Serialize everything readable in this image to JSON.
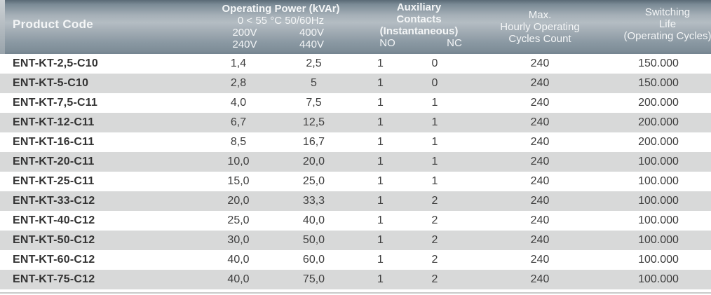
{
  "table": {
    "header": {
      "product_code": "Product Code",
      "power_title": "Operating Power (kVAr)",
      "power_subtitle": "0 < 55 °C 50/60Hz",
      "power_low_line1": "200V",
      "power_low_line2": "240V",
      "power_high_line1": "400V",
      "power_high_line2": "440V",
      "aux_line1": "Auxiliary",
      "aux_line2": "Contacts",
      "aux_line3": "(Instantaneous)",
      "aux_no": "NO",
      "aux_nc": "NC",
      "max_line1": "Max.",
      "max_line2": "Hourly Operating",
      "max_line3": "Cycles Count",
      "life_line1": "Switching",
      "life_line2": "Life",
      "life_line3": "(Operating Cycles)"
    },
    "rows": [
      {
        "product_code": "ENT-KT-2,5-C10",
        "power_200_240": "1,4",
        "power_400_440": "2,5",
        "aux_no": "1",
        "aux_nc": "0",
        "max_hourly_cycles": "240",
        "switching_life": "150.000"
      },
      {
        "product_code": "ENT-KT-5-C10",
        "power_200_240": "2,8",
        "power_400_440": "5",
        "aux_no": "1",
        "aux_nc": "0",
        "max_hourly_cycles": "240",
        "switching_life": "150.000"
      },
      {
        "product_code": "ENT-KT-7,5-C11",
        "power_200_240": "4,0",
        "power_400_440": "7,5",
        "aux_no": "1",
        "aux_nc": "1",
        "max_hourly_cycles": "240",
        "switching_life": "200.000"
      },
      {
        "product_code": "ENT-KT-12-C11",
        "power_200_240": "6,7",
        "power_400_440": "12,5",
        "aux_no": "1",
        "aux_nc": "1",
        "max_hourly_cycles": "240",
        "switching_life": "200.000"
      },
      {
        "product_code": "ENT-KT-16-C11",
        "power_200_240": "8,5",
        "power_400_440": "16,7",
        "aux_no": "1",
        "aux_nc": "1",
        "max_hourly_cycles": "240",
        "switching_life": "200.000"
      },
      {
        "product_code": "ENT-KT-20-C11",
        "power_200_240": "10,0",
        "power_400_440": "20,0",
        "aux_no": "1",
        "aux_nc": "1",
        "max_hourly_cycles": "240",
        "switching_life": "100.000"
      },
      {
        "product_code": "ENT-KT-25-C11",
        "power_200_240": "15,0",
        "power_400_440": "25,0",
        "aux_no": "1",
        "aux_nc": "1",
        "max_hourly_cycles": "240",
        "switching_life": "100.000"
      },
      {
        "product_code": "ENT-KT-33-C12",
        "power_200_240": "20,0",
        "power_400_440": "33,3",
        "aux_no": "1",
        "aux_nc": "2",
        "max_hourly_cycles": "240",
        "switching_life": "100.000"
      },
      {
        "product_code": "ENT-KT-40-C12",
        "power_200_240": "25,0",
        "power_400_440": "40,0",
        "aux_no": "1",
        "aux_nc": "2",
        "max_hourly_cycles": "240",
        "switching_life": "100.000"
      },
      {
        "product_code": "ENT-KT-50-C12",
        "power_200_240": "30,0",
        "power_400_440": "50,0",
        "aux_no": "1",
        "aux_nc": "2",
        "max_hourly_cycles": "240",
        "switching_life": "100.000"
      },
      {
        "product_code": "ENT-KT-60-C12",
        "power_200_240": "40,0",
        "power_400_440": "60,0",
        "aux_no": "1",
        "aux_nc": "2",
        "max_hourly_cycles": "240",
        "switching_life": "100.000"
      },
      {
        "product_code": "ENT-KT-75-C12",
        "power_200_240": "40,0",
        "power_400_440": "75,0",
        "aux_no": "1",
        "aux_nc": "2",
        "max_hourly_cycles": "240",
        "switching_life": "100.000"
      }
    ]
  },
  "colors": {
    "header_gradient_top": "#596975",
    "header_gradient_mid": "#b4bdc3",
    "header_gradient_bottom": "#748490",
    "header_text": "#f4f6f7",
    "row_alt_background": "#d8d9d9",
    "row_background": "#ffffff",
    "body_text": "#3d3d3d"
  }
}
